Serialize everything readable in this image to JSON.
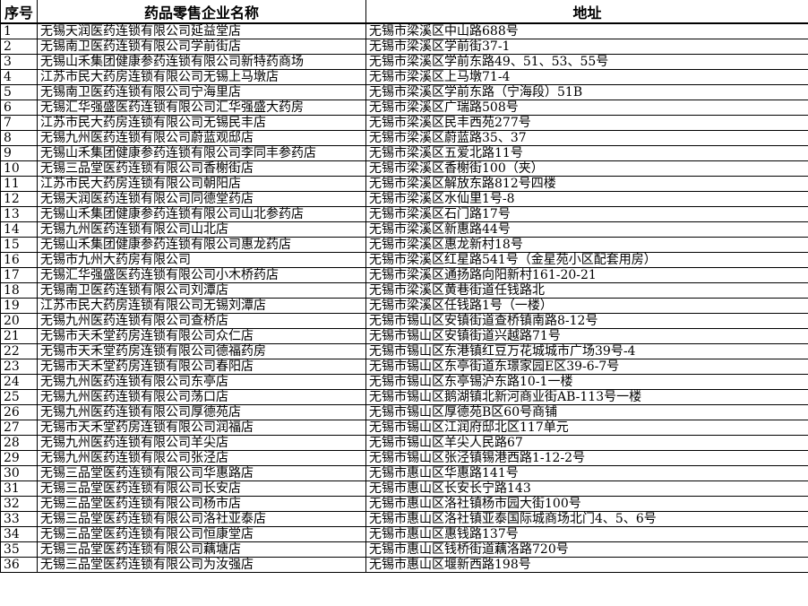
{
  "table": {
    "columns": [
      {
        "key": "index",
        "label": "序号"
      },
      {
        "key": "name",
        "label": "药品零售企业名称"
      },
      {
        "key": "address",
        "label": "地址"
      }
    ],
    "rows": [
      {
        "index": "1",
        "name": "无锡天润医药连锁有限公司延益堂店",
        "address": "无锡市梁溪区中山路688号"
      },
      {
        "index": "2",
        "name": "无锡南卫医药连锁有限公司学前街店",
        "address": "无锡市梁溪区学前街37-1"
      },
      {
        "index": "3",
        "name": "无锡山禾集团健康参药连锁有限公司新特药商场",
        "address": "无锡市梁溪区学前东路49、51、53、55号"
      },
      {
        "index": "4",
        "name": "江苏市民大药房连锁有限公司无锡上马墩店",
        "address": "无锡市梁溪区上马墩71-4"
      },
      {
        "index": "5",
        "name": "无锡南卫医药连锁有限公司宁海里店",
        "address": "无锡市梁溪区学前东路（宁海段）51B"
      },
      {
        "index": "6",
        "name": "无锡汇华强盛医药连锁有限公司汇华强盛大药房",
        "address": "无锡市梁溪区广瑞路508号"
      },
      {
        "index": "7",
        "name": "江苏市民大药房连锁有限公司无锡民丰店",
        "address": "无锡市梁溪区民丰西苑277号"
      },
      {
        "index": "8",
        "name": "无锡九州医药连锁有限公司蔚蓝观邸店",
        "address": "无锡市梁溪区蔚蓝路35、37"
      },
      {
        "index": "9",
        "name": "无锡山禾集团健康参药连锁有限公司李同丰参药店",
        "address": "无锡市梁溪区五爱北路11号"
      },
      {
        "index": "10",
        "name": "无锡三品堂医药连锁有限公司香榭街店",
        "address": "无锡市梁溪区香榭街100（夹）"
      },
      {
        "index": "11",
        "name": "江苏市民大药房连锁有限公司朝阳店",
        "address": "无锡市梁溪区解放东路812号四楼"
      },
      {
        "index": "12",
        "name": "无锡天润医药连锁有限公司同德堂药店",
        "address": "无锡市梁溪区水仙里1号-8"
      },
      {
        "index": "13",
        "name": "无锡山禾集团健康参药连锁有限公司山北参药店",
        "address": "无锡市梁溪区石门路17号"
      },
      {
        "index": "14",
        "name": "无锡九州医药连锁有限公司山北店",
        "address": "无锡市梁溪区新惠路44号"
      },
      {
        "index": "15",
        "name": "无锡山禾集团健康参药连锁有限公司惠龙药店",
        "address": "无锡市梁溪区惠龙新村18号"
      },
      {
        "index": "16",
        "name": "无锡市九州大药房有限公司",
        "address": "无锡市梁溪区红星路541号（金星苑小区配套用房）"
      },
      {
        "index": "17",
        "name": "无锡汇华强盛医药连锁有限公司小木桥药店",
        "address": "无锡市梁溪区通扬路向阳新村161-20-21"
      },
      {
        "index": "18",
        "name": "无锡南卫医药连锁有限公司刘潭店",
        "address": "无锡市梁溪区黄巷街道任钱路北"
      },
      {
        "index": "19",
        "name": "江苏市民大药房连锁有限公司无锡刘潭店",
        "address": "无锡市梁溪区任钱路1号（一楼）"
      },
      {
        "index": "20",
        "name": "无锡九州医药连锁有限公司查桥店",
        "address": "无锡市锡山区安镇街道查桥镇南路8-12号"
      },
      {
        "index": "21",
        "name": "无锡市天禾堂药房连锁有限公司众仁店",
        "address": "无锡市锡山区安镇街道兴越路71号"
      },
      {
        "index": "22",
        "name": "无锡市天禾堂药房连锁有限公司德福药房",
        "address": "无锡市锡山区东港镇红豆万花城城市广场39号-4"
      },
      {
        "index": "23",
        "name": "无锡市天禾堂药房连锁有限公司春阳店",
        "address": "无锡市锡山区东亭街道东璟家园E区39-6-7号"
      },
      {
        "index": "24",
        "name": "无锡九州医药连锁有限公司东亭店",
        "address": "无锡市锡山区东亭锡沪东路10-1一楼"
      },
      {
        "index": "25",
        "name": "无锡九州医药连锁有限公司荡口店",
        "address": "无锡市锡山区鹅湖镇北新河商业街AB-113号一楼"
      },
      {
        "index": "26",
        "name": "无锡九州医药连锁有限公司厚德苑店",
        "address": "无锡市锡山区厚德苑B区60号商铺"
      },
      {
        "index": "27",
        "name": "无锡市天禾堂药房连锁有限公司润福店",
        "address": "无锡市锡山区江润府邸北区117单元"
      },
      {
        "index": "28",
        "name": "无锡九州医药连锁有限公司羊尖店",
        "address": "无锡市锡山区羊尖人民路67"
      },
      {
        "index": "29",
        "name": "无锡九州医药连锁有限公司张泾店",
        "address": "无锡市锡山区张泾镇锡港西路1-12-2号"
      },
      {
        "index": "30",
        "name": "无锡三品堂医药连锁有限公司华惠路店",
        "address": "无锡市惠山区华惠路141号"
      },
      {
        "index": "31",
        "name": "无锡三品堂医药连锁有限公司长安店",
        "address": "无锡市惠山区长安长宁路143"
      },
      {
        "index": "32",
        "name": "无锡三品堂医药连锁有限公司杨市店",
        "address": "无锡市惠山区洛社镇杨市园大街100号"
      },
      {
        "index": "33",
        "name": "无锡三品堂医药连锁有限公司洛社亚泰店",
        "address": "无锡市惠山区洛社镇亚泰国际城商场北门4、5、6号"
      },
      {
        "index": "34",
        "name": "无锡三品堂医药连锁有限公司恒康堂店",
        "address": "无锡市惠山区惠钱路137号"
      },
      {
        "index": "35",
        "name": "无锡三品堂医药连锁有限公司藕塘店",
        "address": "无锡市惠山区钱桥街道藕洛路720号"
      },
      {
        "index": "36",
        "name": "无锡三品堂医药连锁有限公司为汝强店",
        "address": "无锡市惠山区堰新西路198号"
      }
    ]
  }
}
